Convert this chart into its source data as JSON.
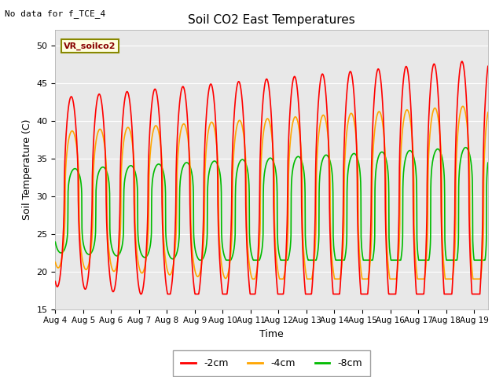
{
  "title": "Soil CO2 East Temperatures",
  "no_data_text": "No data for f_TCE_4",
  "subtitle_box": "VR_soilco2",
  "xlabel": "Time",
  "ylabel": "Soil Temperature (C)",
  "ylim": [
    15,
    52
  ],
  "xlim": [
    0,
    15.5
  ],
  "x_ticks": [
    0,
    1,
    2,
    3,
    4,
    5,
    6,
    7,
    8,
    9,
    10,
    11,
    12,
    13,
    14,
    15
  ],
  "x_tick_labels": [
    "Aug 4",
    "Aug 5",
    "Aug 6",
    "Aug 7",
    "Aug 8",
    "Aug 9",
    "Aug 10",
    "Aug 11",
    "Aug 12",
    "Aug 13",
    "Aug 14",
    "Aug 15",
    "Aug 16",
    "Aug 17",
    "Aug 18",
    "Aug 19"
  ],
  "colors": {
    "2cm": "#FF0000",
    "4cm": "#FFA500",
    "8cm": "#00BB00"
  },
  "background_color": "#E8E8E8",
  "legend_labels": [
    "-2cm",
    "-4cm",
    "-8cm"
  ],
  "grid_color": "#FFFFFF",
  "yticks": [
    15,
    20,
    25,
    30,
    35,
    40,
    45,
    50
  ]
}
